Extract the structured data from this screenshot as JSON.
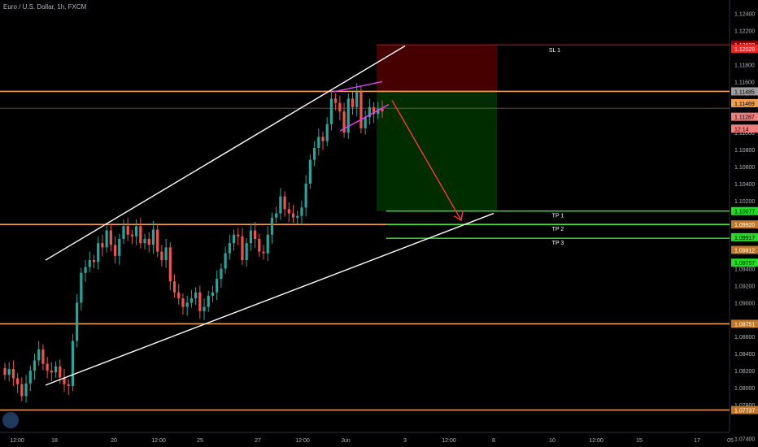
{
  "header": {
    "symbol_line": "Euro / U.S. Dollar, 1h, FXCM"
  },
  "chart_data": {
    "type": "candlestick",
    "instrument": "Euro / U.S. Dollar",
    "timeframe": "1h",
    "source": "FXCM",
    "ylim": [
      1.07302,
      1.1256
    ],
    "y_ticks": [
      "1.12400",
      "1.12200",
      "1.11800",
      "1.11600",
      "1.11000",
      "1.10800",
      "1.10600",
      "1.10400",
      "1.10200",
      "1.09400",
      "1.09200",
      "1.09000",
      "1.08600",
      "1.08400",
      "1.08200",
      "1.08000",
      "1.07800",
      "1.07400"
    ],
    "x_ticks": [
      "12:00",
      "18",
      "20",
      "12:00",
      "25",
      "27",
      "12:00",
      "Jun",
      "3",
      "12:00",
      "8",
      "10",
      "12:00",
      "15",
      "17",
      "05"
    ],
    "price_path": [
      1.0815,
      1.0822,
      1.0811,
      1.0804,
      1.079,
      1.0805,
      1.082,
      1.0832,
      1.0845,
      1.0828,
      1.082,
      1.0818,
      1.0825,
      1.0812,
      1.0804,
      1.0802,
      1.0855,
      1.09,
      1.0935,
      1.0942,
      1.095,
      1.0948,
      1.097,
      1.0965,
      1.0985,
      1.0968,
      1.0955,
      1.0975,
      1.099,
      1.098,
      1.0978,
      1.099,
      1.097,
      1.0975,
      1.0968,
      1.0986,
      1.096,
      1.095,
      1.0965,
      1.0925,
      1.0912,
      1.0905,
      1.0895,
      1.09,
      1.0905,
      1.0912,
      1.089,
      1.0895,
      1.0908,
      1.0912,
      1.0928,
      1.094,
      1.0958,
      1.097,
      1.098,
      1.0978,
      1.095,
      1.097,
      1.0985,
      1.0975,
      1.096,
      1.0958,
      1.098,
      1.1,
      1.1005,
      1.1025,
      1.101,
      1.1005,
      1.1,
      1.1002,
      1.1012,
      1.104,
      1.1068,
      1.1082,
      1.1095,
      1.109,
      1.111,
      1.114,
      1.1135,
      1.1125,
      1.11,
      1.114,
      1.113,
      1.1148,
      1.1105,
      1.1118,
      1.113,
      1.1122,
      1.1128,
      1.1125
    ],
    "horizontal_levels": [
      {
        "price": 1.11485,
        "color": "#f0a050"
      },
      {
        "price": 1.11287,
        "color": "#c08080"
      },
      {
        "price": 1.0992,
        "color": "#f0a050"
      },
      {
        "price": 1.08751,
        "color": "#f0a050"
      },
      {
        "price": 1.07737,
        "color": "#f0a050"
      }
    ],
    "trendlines": [
      {
        "from": [
          "18",
          1.095
        ],
        "to": [
          "3",
          1.1202
        ],
        "color": "#ffffff"
      },
      {
        "from": [
          "18",
          1.0803
        ],
        "to": [
          "8",
          1.1005
        ],
        "color": "#ffffff"
      }
    ],
    "position": {
      "stop_label": "SL 1",
      "stop": 1.12033,
      "entry": 1.11485,
      "targets": [
        {
          "label": "TP 1",
          "price": 1.10077
        },
        {
          "label": "TP 2",
          "price": 1.0992
        },
        {
          "label": "TP 3",
          "price": 1.09757
        }
      ]
    },
    "price_labels": [
      {
        "text": "1.12033",
        "price": 1.12033,
        "bg": "#8b0000",
        "fg": "#ffffff"
      },
      {
        "text": "1.12029",
        "price": 1.11987,
        "bg": "#ff2020",
        "fg": "#ffffff"
      },
      {
        "text": "1.11485",
        "price": 1.11485,
        "bg": "#9e9e9e",
        "fg": "#000000"
      },
      {
        "text": "1.11469",
        "price": 1.11347,
        "bg": "#f0a050",
        "fg": "#000000"
      },
      {
        "text": "1.11287",
        "price": 1.11187,
        "bg": "#f08080",
        "fg": "#000000"
      },
      {
        "text": "12:14",
        "price": 1.11047,
        "bg": "#f08080",
        "fg": "#000000"
      },
      {
        "text": "1.10077",
        "price": 1.10077,
        "bg": "#22dd22",
        "fg": "#000000"
      },
      {
        "text": "1.09920",
        "price": 1.0992,
        "bg": "#c07828",
        "fg": "#ffffff"
      },
      {
        "text": "1.09917",
        "price": 1.0977,
        "bg": "#22dd22",
        "fg": "#000000"
      },
      {
        "text": "1.09912",
        "price": 1.0962,
        "bg": "#c07828",
        "fg": "#ffffff"
      },
      {
        "text": "1.09757",
        "price": 1.0947,
        "bg": "#22dd22",
        "fg": "#000000"
      },
      {
        "text": "1.08751",
        "price": 1.08751,
        "bg": "#c07828",
        "fg": "#ffffff"
      },
      {
        "text": "1.07737",
        "price": 1.07737,
        "bg": "#c07828",
        "fg": "#ffffff"
      }
    ],
    "colors": {
      "up": "#26a69a",
      "down": "#ef5350",
      "background": "#000000",
      "text": "#b2b5be"
    }
  }
}
